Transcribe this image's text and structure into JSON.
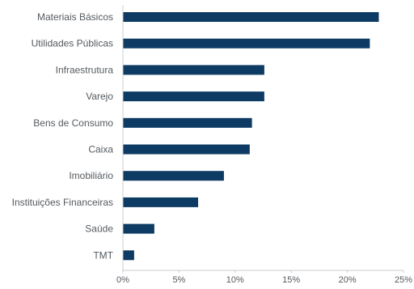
{
  "chart_data": {
    "type": "bar",
    "orientation": "horizontal",
    "title": "",
    "xlabel": "",
    "ylabel": "",
    "categories": [
      "Materiais Básicos",
      "Utilidades Públicas",
      "Infraestrutura",
      "Varejo",
      "Bens de Consumo",
      "Caixa",
      "Imobiliário",
      "Instituições Financeiras",
      "Saúde",
      "TMT"
    ],
    "values": [
      22.8,
      22.0,
      12.6,
      12.6,
      11.5,
      11.3,
      9.0,
      6.7,
      2.8,
      1.0
    ],
    "xlim": [
      0,
      25
    ],
    "x_ticks": [
      0,
      5,
      10,
      15,
      20,
      25
    ],
    "x_tick_labels": [
      "0%",
      "5%",
      "10%",
      "15%",
      "20%",
      "25%"
    ],
    "grid": false,
    "legend": "none",
    "colors": {
      "bar": "#0d3b63",
      "axis": "#c8ccd0",
      "text": "#555a5f"
    }
  }
}
